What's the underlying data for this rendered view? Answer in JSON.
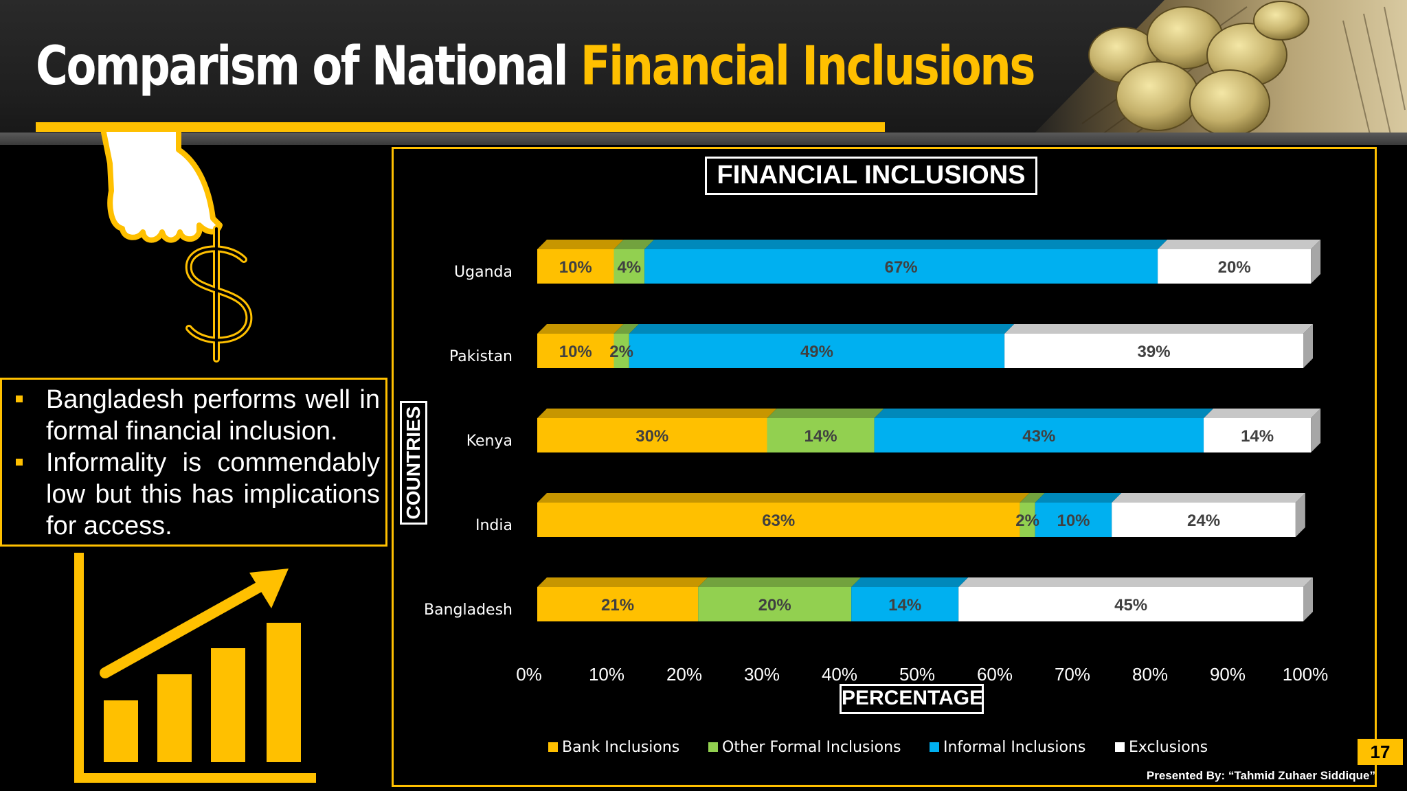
{
  "slide": {
    "title_part1": "Comparism of National",
    "title_part2": "Financial Inclusions",
    "bullets": [
      "Bangladesh performs well in formal financial inclusion.",
      "Informality is commendably low but this has implications for access."
    ],
    "page_number": "17",
    "credit": "Presented By: “Tahmid Zuhaer Siddique”",
    "accent_color": "#ffc000",
    "icons": [
      "hand-holding-dollar-icon",
      "rising-bar-chart-icon",
      "coins-newspaper-photo"
    ]
  },
  "chart_data": {
    "type": "bar",
    "orientation": "horizontal",
    "stacked": "100%",
    "title": "FINANCIAL INCLUSIONS",
    "xlabel": "PERCENTAGE",
    "ylabel": "COUNTRIES",
    "categories": [
      "Uganda",
      "Pakistan",
      "Kenya",
      "India",
      "Bangladesh"
    ],
    "series": [
      {
        "name": "Bank Inclusions",
        "color": "#ffc000",
        "values": [
          10,
          10,
          30,
          63,
          21
        ]
      },
      {
        "name": "Other Formal Inclusions",
        "color": "#92d050",
        "values": [
          4,
          2,
          14,
          2,
          20
        ]
      },
      {
        "name": "Informal Inclusions",
        "color": "#00b0f0",
        "values": [
          67,
          49,
          43,
          10,
          14
        ]
      },
      {
        "name": "Exclusions",
        "color": "#ffffff",
        "values": [
          20,
          39,
          14,
          24,
          45
        ]
      }
    ],
    "data_labels": [
      [
        "10%",
        "4%",
        "67%",
        "20%"
      ],
      [
        "10%",
        "2%",
        "49%",
        "39%"
      ],
      [
        "30%",
        "14%",
        "43%",
        "14%"
      ],
      [
        "63%",
        "2%",
        "10%",
        "24%"
      ],
      [
        "21%",
        "20%",
        "14%",
        "45%"
      ]
    ],
    "xlim": [
      0,
      100
    ],
    "xticks": [
      "0%",
      "10%",
      "20%",
      "30%",
      "40%",
      "50%",
      "60%",
      "70%",
      "80%",
      "90%",
      "100%"
    ],
    "grid": false,
    "legend_position": "bottom"
  }
}
